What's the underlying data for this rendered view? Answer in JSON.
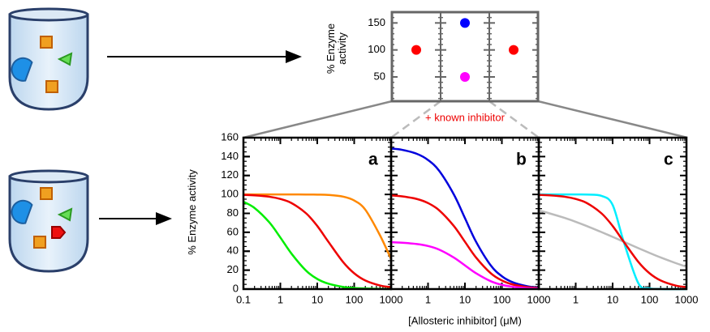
{
  "chart_data": [
    {
      "type": "scatter",
      "ylabel": "% Enzyme activity",
      "annotation": "+ known inhibitor",
      "categories": [
        null,
        null,
        null
      ],
      "ylim": [
        5,
        170
      ],
      "yticks": [
        50,
        100,
        150
      ],
      "series": [
        {
          "name": null,
          "color": "#ff0000",
          "values": [
            100,
            null,
            100
          ]
        },
        {
          "name": null,
          "color": "#0000ff",
          "values": [
            null,
            150,
            null
          ]
        },
        {
          "name": null,
          "color": "#ff00ff",
          "values": [
            null,
            50,
            null
          ]
        }
      ]
    },
    {
      "type": "line",
      "label": "a",
      "ylabel": "% Enzyme activity",
      "log_x": true,
      "xlim": [
        0.1,
        1000
      ],
      "xticks": [
        0.1,
        1,
        10,
        100,
        1000
      ],
      "ylim": [
        0,
        160
      ],
      "yticks": [
        0,
        20,
        40,
        60,
        80,
        100,
        120,
        140,
        160
      ],
      "x": [
        0.1,
        0.2,
        0.5,
        1,
        2,
        5,
        10,
        20,
        50,
        100,
        200,
        500,
        1000
      ],
      "series": [
        {
          "color": "#00ee00",
          "values": [
            92.3,
            85.7,
            70.6,
            54.5,
            37.5,
            19.4,
            10.7,
            5.7,
            2.3,
            1.2,
            0.6,
            0.2,
            0.1
          ]
        },
        {
          "color": "#ff8800",
          "values": [
            100,
            100,
            100,
            100,
            100,
            99.9,
            99.8,
            99.5,
            97.7,
            93.6,
            83.9,
            56.8,
            31.7
          ]
        },
        {
          "color": "#ee0000",
          "values": [
            99.5,
            99,
            97.6,
            95.2,
            90.9,
            80,
            66.7,
            50,
            28.6,
            16.7,
            9.1,
            3.8,
            2
          ]
        }
      ]
    },
    {
      "type": "line",
      "label": "b",
      "xlabel": "[Allosteric inhibitor] (μM)",
      "log_x": true,
      "xlim": [
        0.1,
        1000
      ],
      "xticks": [
        1,
        10,
        100,
        1000
      ],
      "ylim": [
        0,
        160
      ],
      "x": [
        0.1,
        0.2,
        0.5,
        1,
        2,
        5,
        10,
        20,
        50,
        100,
        200,
        500,
        1000
      ],
      "series": [
        {
          "color": "#0000dd",
          "values": [
            148.5,
            147.1,
            142.9,
            136.4,
            125,
            100,
            75,
            50,
            25,
            13.6,
            7.1,
            2.9,
            1.5
          ]
        },
        {
          "color": "#ee0000",
          "values": [
            99,
            98,
            95.2,
            90.9,
            83.3,
            66.7,
            50,
            33.3,
            16.7,
            9.1,
            4.8,
            2,
            1
          ]
        },
        {
          "color": "#ff00ff",
          "values": [
            49.5,
            49,
            47.6,
            45.5,
            41.7,
            33.3,
            25,
            16.7,
            8.3,
            4.5,
            2.4,
            1,
            0.5
          ]
        }
      ]
    },
    {
      "type": "line",
      "label": "c",
      "log_x": true,
      "xlim": [
        0.1,
        1000
      ],
      "xticks": [
        1,
        10,
        100,
        1000
      ],
      "ylim": [
        0,
        160
      ],
      "x": [
        0.1,
        0.2,
        0.5,
        1,
        2,
        5,
        10,
        20,
        50,
        100,
        200,
        500,
        1000
      ],
      "series": [
        {
          "color": "#bbbbbb",
          "values": [
            83,
            79.9,
            75.2,
            71.1,
            66.6,
            60.2,
            55.2,
            50,
            43.2,
            38.2,
            33.4,
            27.6,
            23.6
          ]
        },
        {
          "color": "#00eeff",
          "values": [
            100,
            100,
            100,
            100,
            99.9,
            98.5,
            88.9,
            50,
            6,
            0.8,
            0.1,
            0,
            0
          ]
        },
        {
          "color": "#ee0000",
          "values": [
            99.5,
            99,
            97.6,
            95.2,
            90.9,
            80,
            66.7,
            50,
            28.6,
            16.7,
            9.1,
            3.8,
            2
          ]
        }
      ]
    }
  ]
}
